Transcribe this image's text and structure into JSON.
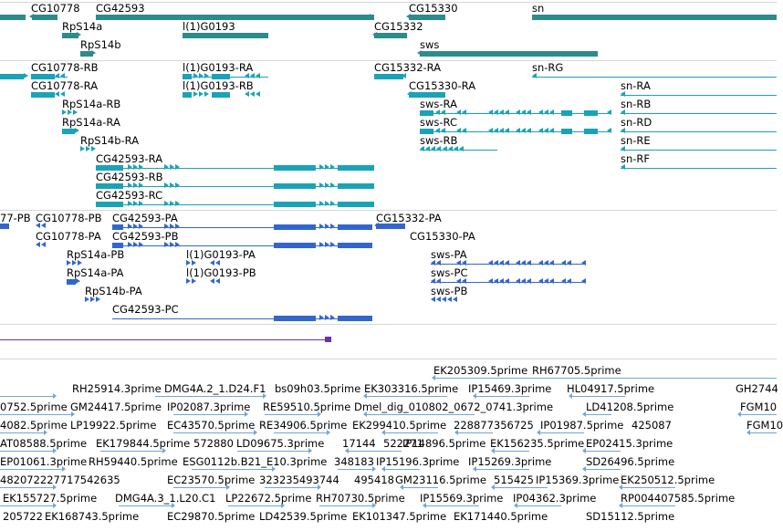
{
  "colors": {
    "gene": "#2e8b8b",
    "transcript": "#1aa3b8",
    "protein": "#3366cc",
    "est": "#6fa7d6",
    "variant": "#6633aa",
    "separator": "#d7d7d7"
  },
  "gene_track": {
    "labels": [
      "CG10778",
      "CG42593",
      "CG15330",
      "sn",
      "RpS14a",
      "l(1)G0193",
      "CG15332",
      "RpS14b",
      "sws"
    ]
  },
  "transcript_track": {
    "labels": [
      "CG10778-RB",
      "l(1)G0193-RA",
      "CG15332-RA",
      "sn-RG",
      "CG10778-RA",
      "l(1)G0193-RB",
      "CG15330-RA",
      "sn-RA",
      "RpS14a-RB",
      "sws-RA",
      "sn-RB",
      "RpS14a-RA",
      "sws-RC",
      "sn-RD",
      "RpS14b-RA",
      "sws-RB",
      "sn-RE",
      "sn-RF",
      "CG42593-RA",
      "CG42593-RB",
      "CG42593-RC"
    ]
  },
  "protein_track": {
    "labels": [
      "77-PB",
      "CG10778-PB",
      "CG42593-PA",
      "CG15332-PA",
      "CG10778-PA",
      "CG42593-PB",
      "CG15330-PA",
      "RpS14a-PB",
      "l(1)G0193-PA",
      "sws-PA",
      "RpS14a-PA",
      "l(1)G0193-PB",
      "sws-PC",
      "RpS14b-PA",
      "sws-PB",
      "CG42593-PC"
    ]
  },
  "est_track": {
    "labels": [
      "EK205309.5prime",
      "RH67705.5prime",
      "RH25914.3prime",
      "DMG4A.2_1.D24.F1",
      "bs09h03.5prime",
      "EK303316.5prime",
      "IP15469.3prime",
      "HL04917.5prime",
      "GH2744",
      "0752.5prime",
      "GM24417.5prime",
      "IP02087.3prime",
      "RE59510.5prime",
      "Dmel_dig_010802_0672_0741.3prime",
      "LD41208.5prime",
      "FGM10",
      "4082.5prime",
      "LP19922.5prime",
      "EC43570.5prime",
      "RE34906.5prime",
      "EK299410.5prime",
      "228877356725",
      "IP01987.5prime",
      "425087",
      "FGM10",
      "AT08588.5prime",
      "EK179844.5prime",
      "572880",
      "LD09675.3prime",
      "17144",
      "522271",
      "IP14896.5prime",
      "EK156235.5prime",
      "EP02415.3prime",
      "EP01061.3prime",
      "RH59440.5prime",
      "ESG0112b.B21_E10.3prime",
      "348183",
      "IP15196.3prime",
      "IP15269.3prime",
      "SD26496.5prime",
      "482072227717542635",
      "EC23570.5prime",
      "323235493744",
      "495418",
      "GM23116.5prime",
      "515425",
      "IP15369.3prime",
      "EK250512.5prime",
      "EK155727.5prime",
      "DMG4A.3_1.L20.C1",
      "LP22672.5prime",
      "RH70730.5prime",
      "IP15569.3prime",
      "IP04362.3prime",
      "RP004407585.5prime",
      "205722",
      "EK168743.5prime",
      "EC29870.5prime",
      "LD42539.5prime",
      "EK101347.5prime",
      "EK171440.5prime",
      "SD15112.5prime"
    ]
  }
}
